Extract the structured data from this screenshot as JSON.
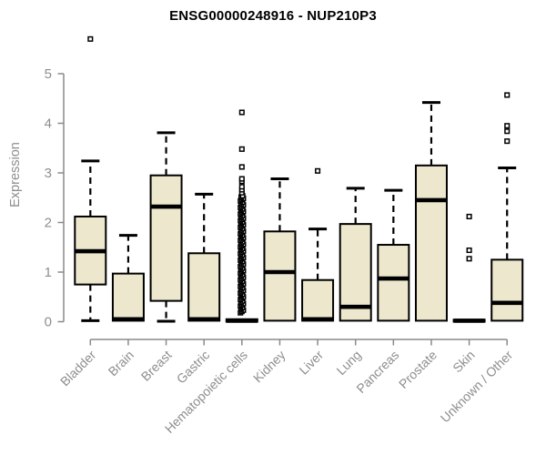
{
  "chart_data": {
    "type": "boxplot",
    "title": "ENSG00000248916 - NUP210P3",
    "ylabel": "Expression",
    "xlabel": "",
    "ylim": [
      0,
      5
    ],
    "yticks": [
      0,
      1,
      2,
      3,
      4,
      5
    ],
    "grid": false,
    "legend": null,
    "colors": {
      "box_fill": "#EDE8CD",
      "box_border": "#000000",
      "median": "#000000",
      "whisker": "#000000",
      "outlier_fill": "#ffffff",
      "axis": "#8a8a8a",
      "tick_label": "#8e8e8e",
      "title": "#000000",
      "background": "#ffffff"
    },
    "categories": [
      "Bladder",
      "Brain",
      "Breast",
      "Gastric",
      "Hematopoietic cells",
      "Kidney",
      "Liver",
      "Lung",
      "Pancreas",
      "Prostate",
      "Skin",
      "Unknown / Other"
    ],
    "boxes": [
      {
        "name": "Bladder",
        "low": 0.02,
        "q1": 0.75,
        "median": 1.42,
        "q3": 2.12,
        "high": 3.24,
        "outliers": [
          5.7
        ]
      },
      {
        "name": "Brain",
        "low": 0.0,
        "q1": 0.02,
        "median": 0.05,
        "q3": 0.97,
        "high": 1.74,
        "outliers": []
      },
      {
        "name": "Breast",
        "low": 0.01,
        "q1": 0.42,
        "median": 2.32,
        "q3": 2.95,
        "high": 3.81,
        "outliers": []
      },
      {
        "name": "Gastric",
        "low": 0.0,
        "q1": 0.02,
        "median": 0.05,
        "q3": 1.38,
        "high": 2.57,
        "outliers": []
      },
      {
        "name": "Hematopoietic cells",
        "low": null,
        "q1": 0.0,
        "median": 0.02,
        "q3": 0.05,
        "high": null,
        "outliers": [
          2.6,
          2.66,
          2.72,
          2.83,
          2.88,
          3.12,
          3.48,
          4.22
        ],
        "outliers_dense": {
          "min": 0.18,
          "max": 2.54,
          "count": 90
        }
      },
      {
        "name": "Kidney",
        "low": 0.0,
        "q1": 0.02,
        "median": 1.0,
        "q3": 1.82,
        "high": 2.88,
        "outliers": []
      },
      {
        "name": "Liver",
        "low": 0.0,
        "q1": 0.02,
        "median": 0.05,
        "q3": 0.84,
        "high": 1.87,
        "outliers": [
          3.04
        ]
      },
      {
        "name": "Lung",
        "low": 0.0,
        "q1": 0.02,
        "median": 0.3,
        "q3": 1.97,
        "high": 2.69,
        "outliers": []
      },
      {
        "name": "Pancreas",
        "low": 0.0,
        "q1": 0.02,
        "median": 0.87,
        "q3": 1.55,
        "high": 2.65,
        "outliers": []
      },
      {
        "name": "Prostate",
        "low": 0.0,
        "q1": 0.02,
        "median": 2.45,
        "q3": 3.15,
        "high": 4.42,
        "outliers": []
      },
      {
        "name": "Skin",
        "low": null,
        "q1": 0.0,
        "median": 0.02,
        "q3": 0.04,
        "high": null,
        "outliers": [
          1.27,
          1.44,
          2.12
        ]
      },
      {
        "name": "Unknown / Other",
        "low": 0.0,
        "q1": 0.02,
        "median": 0.38,
        "q3": 1.25,
        "high": 3.1,
        "outliers": [
          3.64,
          3.84,
          3.95,
          4.57
        ]
      }
    ]
  }
}
